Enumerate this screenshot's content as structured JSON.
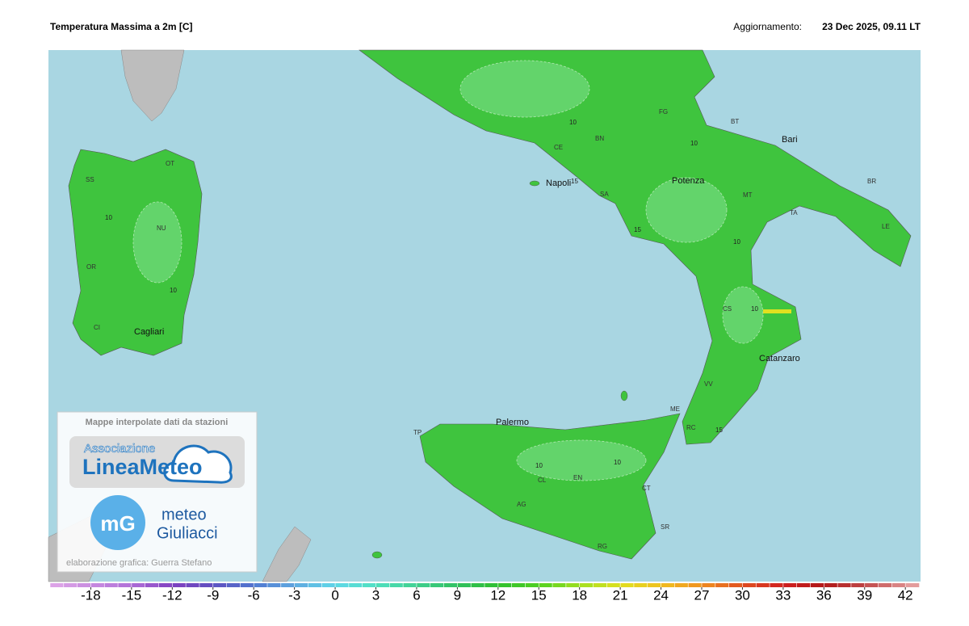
{
  "header": {
    "title": "Temperatura Massima a 2m [C]",
    "update_label": "Aggiornamento:",
    "update_time": "23 Dec 2025, 09.11 LT"
  },
  "map": {
    "cities": [
      "Napoli",
      "Potenza",
      "Bari",
      "Catanzaro",
      "Palermo",
      "Cagliari"
    ],
    "provinces": [
      "SS",
      "OT",
      "NU",
      "OR",
      "CI",
      "CE",
      "BN",
      "FG",
      "BT",
      "BR",
      "MT",
      "TA",
      "LE",
      "SA",
      "CS",
      "VV",
      "RC",
      "ME",
      "TP",
      "CL",
      "EN",
      "CT",
      "AG",
      "SR",
      "RG"
    ],
    "contour_labels": [
      "10",
      "10",
      "10",
      "15",
      "10",
      "10",
      "15",
      "10",
      "10",
      "10",
      "15"
    ]
  },
  "credits": {
    "caption": "Mappe interpolate dati da stazioni",
    "logo1_top": "Associazione",
    "logo1_main": "LineaMeteo",
    "logo2_line1": "meteo",
    "logo2_line2": "Giuliacci",
    "logo2_mark": "mG",
    "author": "elaborazione grafica: Guerra Stefano"
  },
  "colorbar": {
    "range": [
      -21,
      43
    ],
    "ticks": [
      -18,
      -15,
      -12,
      -9,
      -6,
      -3,
      0,
      3,
      6,
      9,
      12,
      15,
      18,
      21,
      24,
      27,
      30,
      33,
      36,
      39,
      42
    ],
    "stops": [
      {
        "value": -21,
        "color": "#e0a8e8"
      },
      {
        "value": -15,
        "color": "#b070d8"
      },
      {
        "value": -12,
        "color": "#8040c0"
      },
      {
        "value": -9,
        "color": "#6050c0"
      },
      {
        "value": -6,
        "color": "#5078d0"
      },
      {
        "value": -3,
        "color": "#60a8e0"
      },
      {
        "value": 0,
        "color": "#60d8e8"
      },
      {
        "value": 3,
        "color": "#50e0c0"
      },
      {
        "value": 6,
        "color": "#40d090"
      },
      {
        "value": 9,
        "color": "#30c060"
      },
      {
        "value": 12,
        "color": "#30c030"
      },
      {
        "value": 15,
        "color": "#50d020"
      },
      {
        "value": 18,
        "color": "#a0e020"
      },
      {
        "value": 21,
        "color": "#e0e020"
      },
      {
        "value": 24,
        "color": "#f0c020"
      },
      {
        "value": 27,
        "color": "#f09020"
      },
      {
        "value": 30,
        "color": "#e05020"
      },
      {
        "value": 33,
        "color": "#d02020"
      },
      {
        "value": 36,
        "color": "#b01818"
      },
      {
        "value": 39,
        "color": "#c04848"
      },
      {
        "value": 43,
        "color": "#e8a8a8"
      }
    ]
  }
}
